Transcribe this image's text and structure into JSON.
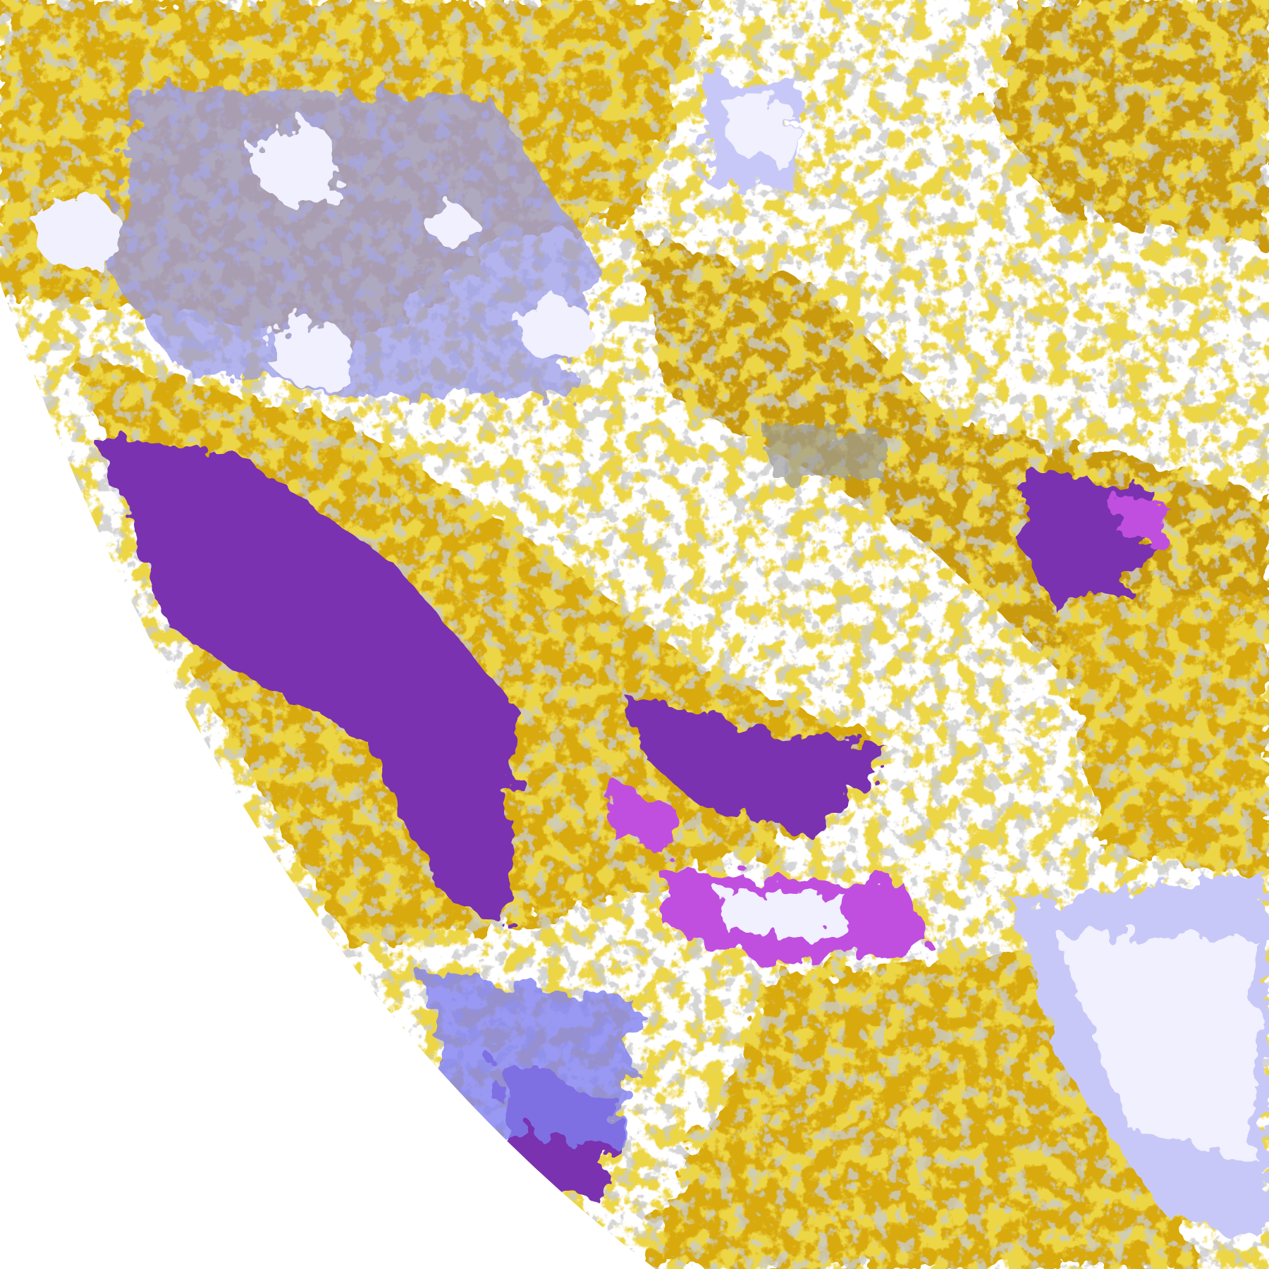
{
  "image": {
    "kind": "satellite cloud-type classification over Earth disc limb",
    "background": "#ffffff",
    "palette": {
      "clear": "#ffffff",
      "low_cloud_gold": "#d8aa10",
      "low_cloud_dark_gold": "#b8860b",
      "thick_cloud_purple": "#7a30b0",
      "magenta": "#c050e0",
      "periwinkle": "#8080f0",
      "lavender": "#c8c8f8",
      "pale_white_blue": "#f0f0fe",
      "gray": "#9a9a9a"
    }
  }
}
